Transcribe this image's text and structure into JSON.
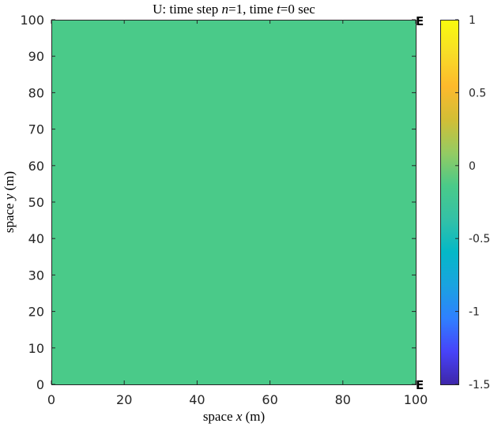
{
  "chart_data": {
    "type": "heatmap",
    "title": {
      "prefix": "U: time step ",
      "n_symbol": "n",
      "n_eq": "=1, time ",
      "t_symbol": "t",
      "t_eq": "=0 sec"
    },
    "xlabel": {
      "prefix": "space ",
      "symbol": "x",
      "suffix": " (m)"
    },
    "ylabel": {
      "prefix": "space ",
      "symbol": "y",
      "suffix": " (m)"
    },
    "xlim": [
      0,
      100
    ],
    "ylim": [
      0,
      100
    ],
    "xticks": [
      0,
      20,
      40,
      60,
      80,
      100
    ],
    "yticks": [
      0,
      10,
      20,
      30,
      40,
      50,
      60,
      70,
      80,
      90,
      100
    ],
    "field": {
      "value": 0,
      "color": "#4ACA89",
      "x_range": [
        0,
        100
      ],
      "y_range": [
        0,
        100
      ]
    },
    "edge_labels": [
      "E",
      "E"
    ],
    "colorbar": {
      "clim": [
        -1.5,
        1
      ],
      "ticks": [
        1,
        0.5,
        0,
        -0.5,
        -1,
        -1.5
      ],
      "tick_labels": [
        "1",
        "0.5",
        "0",
        "-0.5",
        "-1",
        "-1.5"
      ],
      "colormap": [
        "#3E26A8",
        "#4743F9",
        "#2F80FF",
        "#1AA3E0",
        "#04B8C7",
        "#34C1A6",
        "#4ACA89",
        "#95CB62",
        "#D2BE36",
        "#FDB92C",
        "#F8DD27",
        "#F9FB0E"
      ]
    }
  }
}
